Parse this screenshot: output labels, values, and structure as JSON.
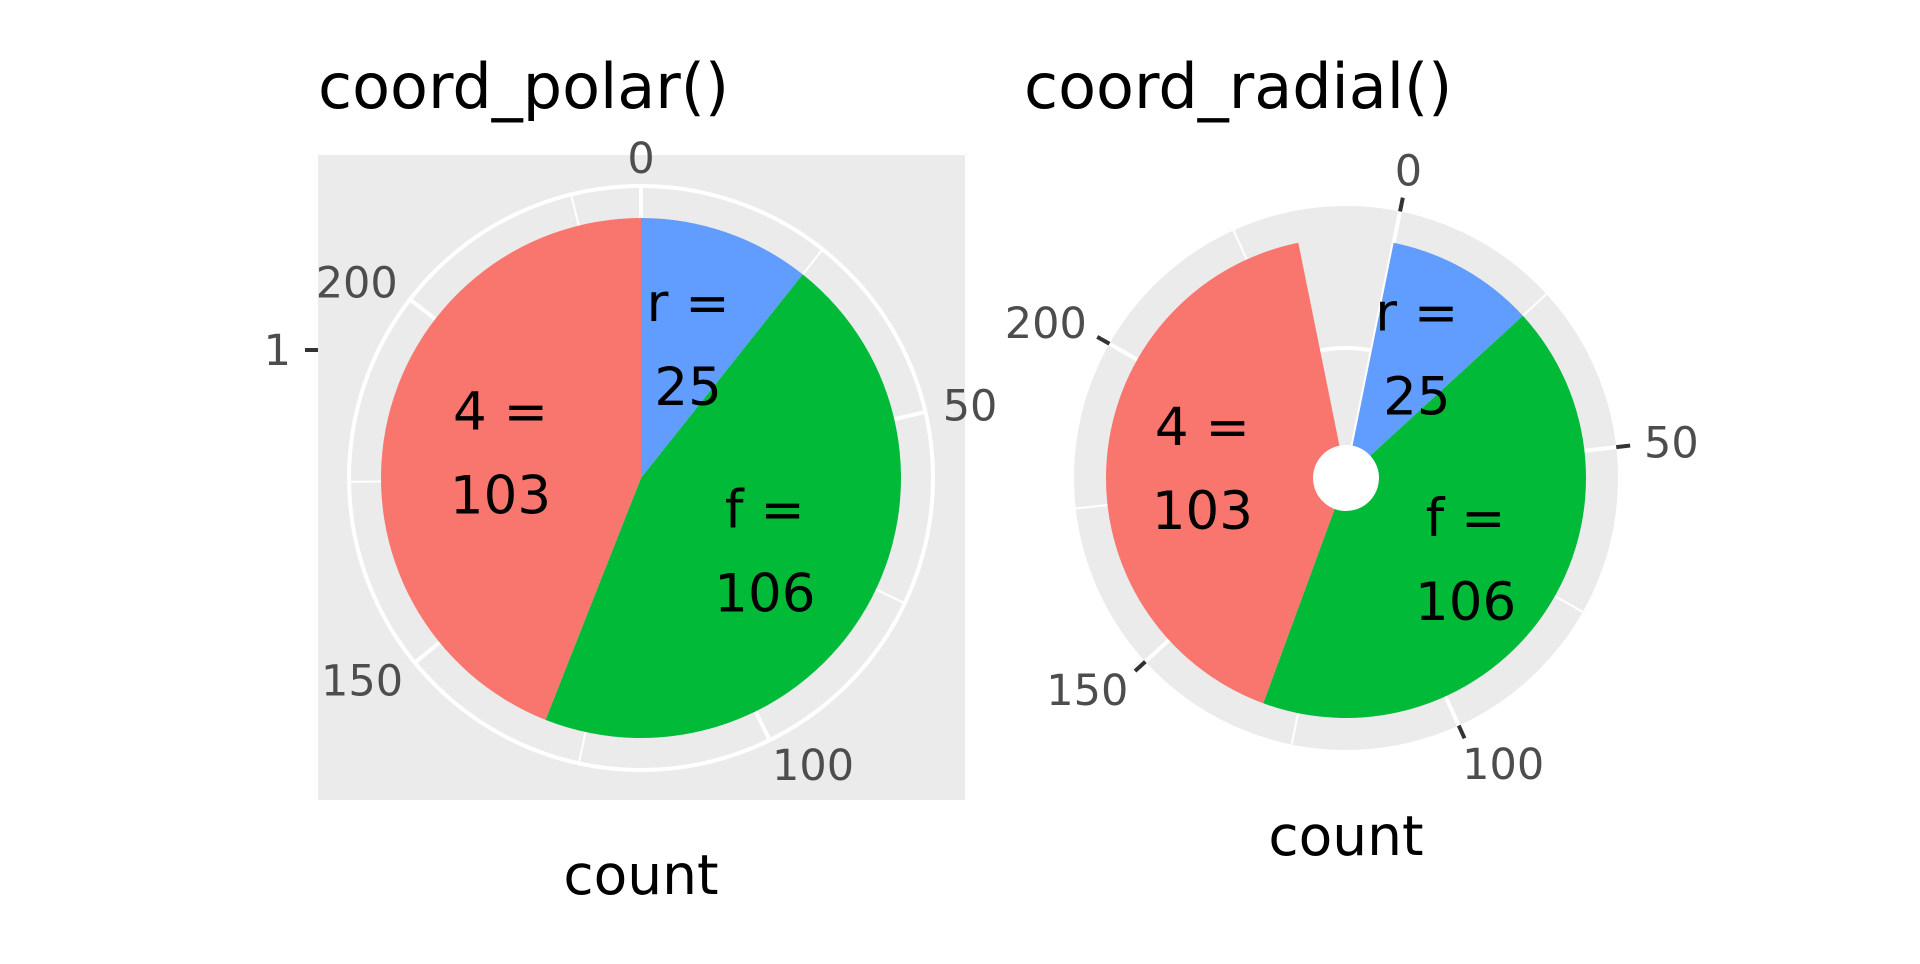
{
  "chart_data": [
    {
      "type": "pie",
      "coord": "polar",
      "title": "coord_polar()",
      "xlabel": "count",
      "y_tick_label": "1",
      "theta_ticks": [
        0,
        50,
        100,
        150,
        200
      ],
      "theta_tick_labels": [
        "0",
        "50",
        "100",
        "150",
        "200"
      ],
      "total": 234,
      "slices": [
        {
          "category": "r",
          "value": 25,
          "color": "#619CFF",
          "label": [
            "r =",
            "25"
          ]
        },
        {
          "category": "f",
          "value": 106,
          "color": "#00BA38",
          "label": [
            "f =",
            "106"
          ]
        },
        {
          "category": "4",
          "value": 103,
          "color": "#F8766D",
          "label": [
            "4 =",
            "103"
          ]
        }
      ],
      "panel_background": "#EBEBEB",
      "grid_color": "#FFFFFF",
      "grid": true
    },
    {
      "type": "pie",
      "coord": "radial",
      "title": "coord_radial()",
      "xlabel": "count",
      "theta_ticks": [
        0,
        50,
        100,
        150,
        200
      ],
      "theta_tick_labels": [
        "0",
        "50",
        "100",
        "150",
        "200"
      ],
      "total": 234,
      "slices": [
        {
          "category": "r",
          "value": 25,
          "color": "#619CFF",
          "label": [
            "r =",
            "25"
          ]
        },
        {
          "category": "f",
          "value": 106,
          "color": "#00BA38",
          "label": [
            "f =",
            "106"
          ]
        },
        {
          "category": "4",
          "value": 103,
          "color": "#F8766D",
          "label": [
            "4 =",
            "103"
          ]
        }
      ],
      "panel_background": "#EBEBEB",
      "grid_color": "#FFFFFF",
      "grid": true
    }
  ]
}
